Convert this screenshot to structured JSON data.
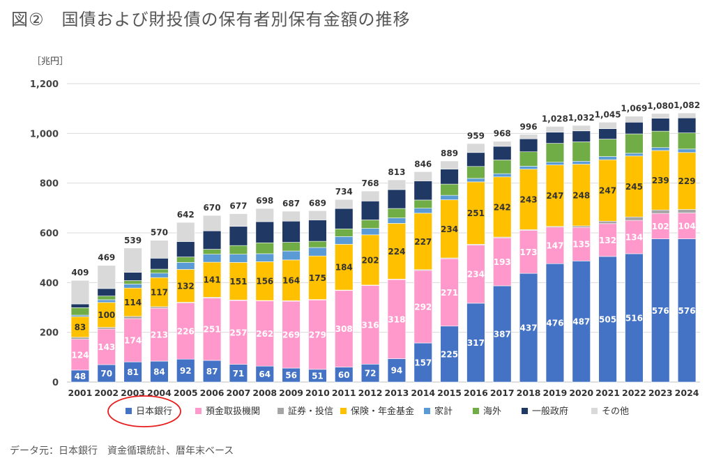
{
  "page": {
    "title": "図②　国債および財投債の保有者別保有金額の推移",
    "source": "データ元：日本銀行　資金循環統計、暦年末ベース"
  },
  "chart_data": {
    "type": "bar",
    "stacked": true,
    "unit_label": "［兆円］",
    "categories": [
      "2001",
      "2002",
      "2003",
      "2004",
      "2005",
      "2006",
      "2007",
      "2008",
      "2009",
      "2010",
      "2011",
      "2012",
      "2013",
      "2014",
      "2015",
      "2016",
      "2017",
      "2018",
      "2019",
      "2020",
      "2021",
      "2022",
      "2023",
      "2024"
    ],
    "totals": [
      409,
      469,
      539,
      570,
      642,
      670,
      677,
      698,
      687,
      689,
      734,
      768,
      813,
      846,
      889,
      959,
      968,
      996,
      1028,
      1032,
      1045,
      1069,
      1080,
      1082
    ],
    "total_labels": [
      "409",
      "469",
      "539",
      "570",
      "642",
      "670",
      "677",
      "698",
      "687",
      "689",
      "734",
      "768",
      "813",
      "846",
      "889",
      "959",
      "968",
      "996",
      "1,028",
      "1,032",
      "1,045",
      "1,069",
      "1,080",
      "1,082"
    ],
    "ylim": [
      0,
      1200
    ],
    "yticks": [
      0,
      200,
      400,
      600,
      800,
      1000,
      1200
    ],
    "ytick_labels": [
      "0",
      "200",
      "400",
      "600",
      "800",
      "1,000",
      "1,200"
    ],
    "grid": true,
    "legend_position": "bottom",
    "series": [
      {
        "name": "日本銀行",
        "color": "#4472C4",
        "labeled": true,
        "values": [
          48,
          70,
          81,
          84,
          92,
          87,
          71,
          64,
          56,
          51,
          60,
          72,
          94,
          157,
          225,
          317,
          387,
          437,
          476,
          487,
          505,
          516,
          576,
          576
        ]
      },
      {
        "name": "預金取扱機関",
        "color": "#FF99CC",
        "labeled": true,
        "values": [
          124,
          143,
          174,
          213,
          226,
          251,
          257,
          262,
          269,
          279,
          308,
          316,
          318,
          292,
          271,
          234,
          193,
          173,
          147,
          135,
          132,
          134,
          102,
          104
        ]
      },
      {
        "name": "証券・投信",
        "color": "#A5A5A5",
        "labeled": false,
        "values": [
          8,
          7,
          9,
          6,
          3,
          3,
          2,
          2,
          2,
          2,
          2,
          2,
          2,
          3,
          3,
          3,
          3,
          3,
          3,
          6,
          10,
          14,
          14,
          14
        ]
      },
      {
        "name": "保険・年金基金",
        "color": "#FFC000",
        "labeled": true,
        "values": [
          83,
          100,
          114,
          117,
          132,
          141,
          151,
          156,
          164,
          175,
          184,
          202,
          224,
          227,
          234,
          251,
          242,
          243,
          247,
          248,
          247,
          245,
          239,
          229
        ]
      },
      {
        "name": "家計",
        "color": "#5B9BD5",
        "labeled": false,
        "values": [
          6,
          11,
          16,
          18,
          28,
          32,
          33,
          32,
          36,
          34,
          31,
          26,
          22,
          20,
          18,
          14,
          13,
          12,
          11,
          12,
          13,
          11,
          12,
          14
        ]
      },
      {
        "name": "海外",
        "color": "#70AD47",
        "labeled": false,
        "values": [
          30,
          15,
          14,
          16,
          22,
          20,
          35,
          44,
          35,
          25,
          31,
          34,
          38,
          33,
          45,
          48,
          55,
          58,
          76,
          78,
          70,
          78,
          66,
          65
        ]
      },
      {
        "name": "一般政府",
        "color": "#203864",
        "labeled": false,
        "values": [
          15,
          30,
          33,
          44,
          62,
          74,
          77,
          85,
          85,
          86,
          82,
          76,
          76,
          77,
          60,
          56,
          55,
          52,
          45,
          44,
          42,
          47,
          52,
          60
        ]
      },
      {
        "name": "その他",
        "color": "#D9D9D9",
        "labeled": false,
        "values": [
          95,
          93,
          98,
          72,
          77,
          62,
          51,
          53,
          40,
          37,
          36,
          40,
          39,
          37,
          33,
          36,
          20,
          18,
          23,
          22,
          26,
          24,
          19,
          20
        ]
      }
    ],
    "annotation": {
      "target": "日本銀行",
      "shape": "ellipse",
      "color": "#E81C1C"
    }
  }
}
